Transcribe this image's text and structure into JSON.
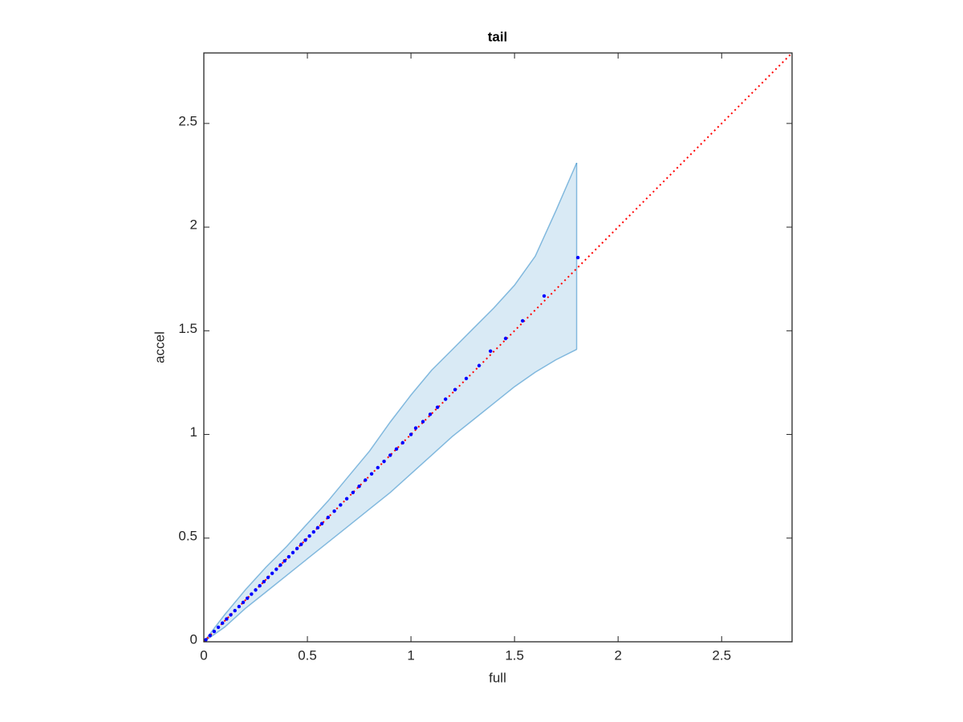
{
  "chart_data": {
    "type": "scatter",
    "title": "tail",
    "xlabel": "full",
    "ylabel": "accel",
    "xlim": [
      0,
      2.84
    ],
    "ylim": [
      0,
      2.84
    ],
    "xticks": [
      0,
      0.5,
      1,
      1.5,
      2,
      2.5
    ],
    "yticks": [
      0,
      0.5,
      1,
      1.5,
      2,
      2.5
    ],
    "band": {
      "color": "#0072bd",
      "x": [
        0,
        0.1,
        0.2,
        0.3,
        0.4,
        0.5,
        0.6,
        0.7,
        0.8,
        0.9,
        1.0,
        1.1,
        1.2,
        1.3,
        1.4,
        1.5,
        1.6,
        1.7,
        1.8
      ],
      "upper": [
        0,
        0.13,
        0.25,
        0.36,
        0.46,
        0.57,
        0.68,
        0.8,
        0.92,
        1.06,
        1.19,
        1.31,
        1.41,
        1.51,
        1.61,
        1.72,
        1.86,
        2.08,
        2.31
      ],
      "lower": [
        0,
        0.07,
        0.16,
        0.24,
        0.32,
        0.4,
        0.48,
        0.56,
        0.64,
        0.72,
        0.81,
        0.9,
        0.99,
        1.07,
        1.15,
        1.23,
        1.3,
        1.36,
        1.41
      ]
    },
    "reference": {
      "color": "#ff0000",
      "x": [
        0,
        2.84
      ],
      "values": [
        0,
        2.84
      ]
    },
    "series": [
      {
        "color": "#0000ff",
        "x": [
          0.01,
          0.03,
          0.05,
          0.07,
          0.09,
          0.11,
          0.13,
          0.15,
          0.17,
          0.19,
          0.21,
          0.23,
          0.25,
          0.27,
          0.29,
          0.31,
          0.33,
          0.35,
          0.37,
          0.39,
          0.41,
          0.43,
          0.45,
          0.47,
          0.49,
          0.51,
          0.53,
          0.55,
          0.57,
          0.6,
          0.63,
          0.66,
          0.69,
          0.72,
          0.75,
          0.78,
          0.81,
          0.84,
          0.87,
          0.9,
          0.93,
          0.96,
          1.0,
          1.023,
          1.058,
          1.093,
          1.128,
          1.167,
          1.213,
          1.267,
          1.329,
          1.384,
          1.457,
          1.539,
          1.643,
          1.806
        ],
        "values": [
          0.01,
          0.03,
          0.05,
          0.07,
          0.09,
          0.11,
          0.13,
          0.15,
          0.17,
          0.19,
          0.21,
          0.23,
          0.25,
          0.27,
          0.29,
          0.31,
          0.33,
          0.35,
          0.37,
          0.39,
          0.41,
          0.43,
          0.45,
          0.47,
          0.49,
          0.51,
          0.53,
          0.55,
          0.57,
          0.6,
          0.63,
          0.66,
          0.69,
          0.72,
          0.75,
          0.78,
          0.81,
          0.84,
          0.87,
          0.9,
          0.93,
          0.96,
          1.0,
          1.031,
          1.062,
          1.097,
          1.131,
          1.17,
          1.216,
          1.27,
          1.332,
          1.402,
          1.463,
          1.548,
          1.668,
          1.853
        ]
      }
    ]
  }
}
